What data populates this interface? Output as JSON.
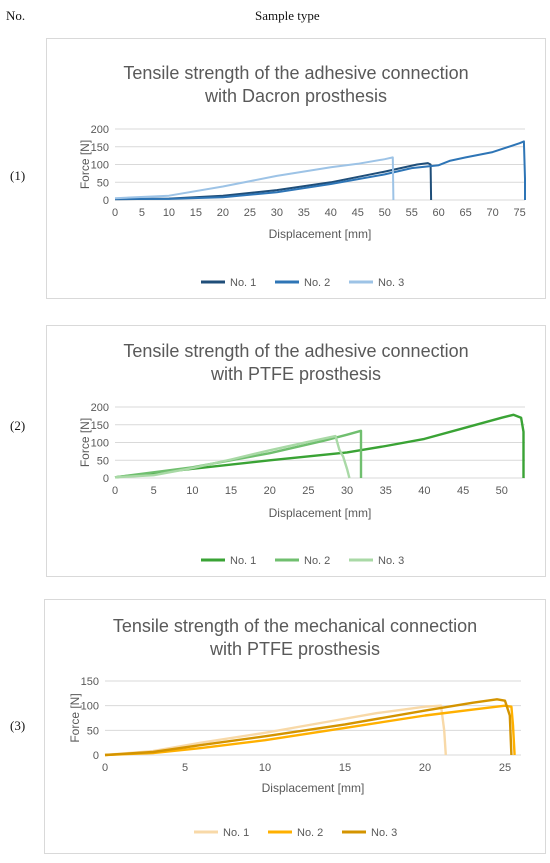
{
  "header": {
    "no_label": "No.",
    "sample_type_label": "Sample type"
  },
  "rows": [
    "(1)",
    "(2)",
    "(3)"
  ],
  "chart_data": [
    {
      "type": "line",
      "title_lines": [
        "Tensile strength of the adhesive connection",
        "with Dacron prosthesis"
      ],
      "xlabel": "Displacement [mm]",
      "ylabel": "Force [N]",
      "xlim": [
        0,
        76
      ],
      "ylim": [
        0,
        200
      ],
      "xticks": [
        0,
        5,
        10,
        15,
        20,
        25,
        30,
        35,
        40,
        45,
        50,
        55,
        60,
        65,
        70,
        75
      ],
      "yticks": [
        0,
        50,
        100,
        150,
        200
      ],
      "legend_position": "bottom",
      "series": [
        {
          "name": "No. 1",
          "color": "#1f4e79",
          "points": [
            [
              0,
              2
            ],
            [
              10,
              4
            ],
            [
              20,
              12
            ],
            [
              30,
              28
            ],
            [
              40,
              50
            ],
            [
              50,
              80
            ],
            [
              56,
              100
            ],
            [
              58,
              104
            ],
            [
              58.5,
              100
            ],
            [
              58.6,
              0
            ]
          ]
        },
        {
          "name": "No. 2",
          "color": "#2e75b6",
          "points": [
            [
              0,
              3
            ],
            [
              10,
              3
            ],
            [
              20,
              8
            ],
            [
              30,
              22
            ],
            [
              40,
              45
            ],
            [
              50,
              72
            ],
            [
              55,
              90
            ],
            [
              60,
              98
            ],
            [
              62,
              110
            ],
            [
              65,
              120
            ],
            [
              70,
              135
            ],
            [
              75,
              160
            ],
            [
              75.8,
              165
            ],
            [
              76,
              60
            ],
            [
              76,
              0
            ]
          ]
        },
        {
          "name": "No. 3",
          "color": "#9dc3e6",
          "points": [
            [
              0,
              5
            ],
            [
              10,
              12
            ],
            [
              20,
              38
            ],
            [
              30,
              68
            ],
            [
              40,
              92
            ],
            [
              45,
              102
            ],
            [
              50,
              115
            ],
            [
              51.5,
              120
            ],
            [
              51.6,
              0
            ]
          ]
        }
      ]
    },
    {
      "type": "line",
      "title_lines": [
        "Tensile strength of the adhesive connection",
        "with PTFE prosthesis"
      ],
      "xlabel": "Displacement [mm]",
      "ylabel": "Force [N]",
      "xlim": [
        0,
        53
      ],
      "ylim": [
        0,
        200
      ],
      "xticks": [
        0,
        5,
        10,
        15,
        20,
        25,
        30,
        35,
        40,
        45,
        50
      ],
      "yticks": [
        0,
        50,
        100,
        150,
        200
      ],
      "legend_position": "bottom",
      "series": [
        {
          "name": "No. 1",
          "color": "#3aa335",
          "points": [
            [
              0,
              2
            ],
            [
              10,
              26
            ],
            [
              20,
              50
            ],
            [
              30,
              72
            ],
            [
              35,
              90
            ],
            [
              40,
              110
            ],
            [
              45,
              140
            ],
            [
              50,
              170
            ],
            [
              51.5,
              178
            ],
            [
              52.5,
              170
            ],
            [
              52.8,
              130
            ],
            [
              52.8,
              0
            ]
          ]
        },
        {
          "name": "No. 2",
          "color": "#70bf6f",
          "points": [
            [
              0,
              2
            ],
            [
              10,
              30
            ],
            [
              20,
              70
            ],
            [
              27,
              105
            ],
            [
              30,
              122
            ],
            [
              31.8,
              133
            ],
            [
              31.8,
              0
            ]
          ]
        },
        {
          "name": "No. 3",
          "color": "#a9d9a6",
          "points": [
            [
              0,
              2
            ],
            [
              5,
              8
            ],
            [
              10,
              28
            ],
            [
              15,
              52
            ],
            [
              20,
              78
            ],
            [
              25,
              102
            ],
            [
              28.5,
              118
            ],
            [
              29,
              80
            ],
            [
              29.5,
              60
            ],
            [
              30,
              25
            ],
            [
              30.3,
              0
            ]
          ]
        }
      ]
    },
    {
      "type": "line",
      "title_lines": [
        "Tensile strength of the mechanical connection",
        "with PTFE prosthesis"
      ],
      "xlabel": "Displacement [mm]",
      "ylabel": "Force [N]",
      "xlim": [
        0,
        26
      ],
      "ylim": [
        0,
        150
      ],
      "xticks": [
        0,
        5,
        10,
        15,
        20,
        25
      ],
      "yticks": [
        0,
        50,
        100,
        150
      ],
      "legend_position": "bottom",
      "series": [
        {
          "name": "No. 1",
          "color": "#f8d9a8",
          "points": [
            [
              0,
              0
            ],
            [
              3,
              8
            ],
            [
              6,
              25
            ],
            [
              10,
              45
            ],
            [
              14,
              68
            ],
            [
              17,
              85
            ],
            [
              20,
              98
            ],
            [
              21,
              100
            ],
            [
              21.2,
              50
            ],
            [
              21.3,
              0
            ]
          ]
        },
        {
          "name": "No. 2",
          "color": "#ffb000",
          "points": [
            [
              0,
              0
            ],
            [
              3,
              4
            ],
            [
              6,
              14
            ],
            [
              10,
              30
            ],
            [
              15,
              55
            ],
            [
              20,
              80
            ],
            [
              23,
              92
            ],
            [
              25,
              100
            ],
            [
              25.4,
              98
            ],
            [
              25.5,
              60
            ],
            [
              25.6,
              0
            ]
          ]
        },
        {
          "name": "No. 3",
          "color": "#d49400",
          "points": [
            [
              0,
              0
            ],
            [
              3,
              6
            ],
            [
              6,
              20
            ],
            [
              10,
              38
            ],
            [
              15,
              62
            ],
            [
              20,
              90
            ],
            [
              23,
              106
            ],
            [
              24.5,
              113
            ],
            [
              25,
              110
            ],
            [
              25.3,
              80
            ],
            [
              25.4,
              0
            ]
          ]
        }
      ]
    }
  ]
}
